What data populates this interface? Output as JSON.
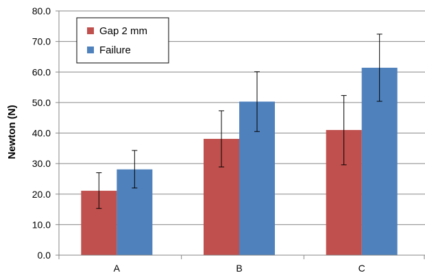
{
  "chart_data": {
    "type": "bar",
    "title": "",
    "xlabel": "",
    "ylabel": "Newton (N)",
    "ylim": [
      0,
      80
    ],
    "ytick_step": 10,
    "y_tick_labels": [
      "0.0",
      "10.0",
      "20.0",
      "30.0",
      "40.0",
      "50.0",
      "60.0",
      "70.0",
      "80.0"
    ],
    "categories": [
      "A",
      "B",
      "C"
    ],
    "grid": true,
    "legend_position": "top-left",
    "series": [
      {
        "name": "Gap 2 mm",
        "color": "#C0504D",
        "values": [
          21.1,
          38.1,
          41.0
        ],
        "error_low": [
          15.3,
          28.9,
          29.6
        ],
        "error_high": [
          27.0,
          47.3,
          52.3
        ]
      },
      {
        "name": "Failure",
        "color": "#4F81BD",
        "values": [
          28.1,
          50.3,
          61.4
        ],
        "error_low": [
          22.0,
          40.5,
          50.4
        ],
        "error_high": [
          34.3,
          60.1,
          72.4
        ]
      }
    ]
  }
}
